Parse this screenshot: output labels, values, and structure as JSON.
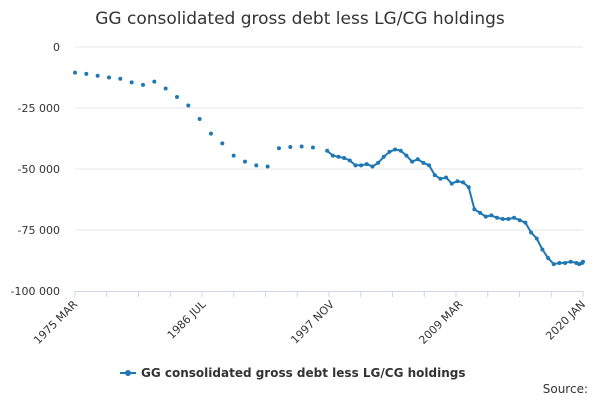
{
  "chart_data": {
    "type": "line",
    "title": "GG consolidated gross debt less LG/CG holdings",
    "xlabel": "",
    "ylabel": "",
    "ylim": [
      -100000,
      0
    ],
    "y_ticks": [
      0,
      -25000,
      -50000,
      -75000,
      -100000
    ],
    "y_tick_labels": [
      "0",
      "-25 000",
      "-50 000",
      "-75 000",
      "-100 000"
    ],
    "x_range": [
      "1975-03",
      "2020-01"
    ],
    "x_ticks": [
      "1975-03",
      "1986-07",
      "1997-11",
      "2009-03",
      "2020-01"
    ],
    "x_tick_labels": [
      "1975 MAR",
      "1986 JUL",
      "1997 NOV",
      "2009 MAR",
      "2020 JAN"
    ],
    "grid": true,
    "legend_position": "bottom",
    "colors": {
      "series": "#1f78b4",
      "grid": "#e6e6e6",
      "axis": "#ccd6eb",
      "text": "#333333"
    },
    "series": [
      {
        "name": "GG consolidated gross debt less LG/CG holdings",
        "annual": {
          "x": [
            "1975-03",
            "1976-03",
            "1977-03",
            "1978-03",
            "1979-03",
            "1980-03",
            "1981-03",
            "1982-03",
            "1983-03",
            "1984-03",
            "1985-03",
            "1986-03",
            "1987-03",
            "1988-03",
            "1989-03",
            "1990-03",
            "1991-03",
            "1992-03",
            "1993-03",
            "1994-03",
            "1995-03",
            "1996-03"
          ],
          "y": [
            -10500,
            -11000,
            -11800,
            -12500,
            -13000,
            -14500,
            -15500,
            -14200,
            -17000,
            -20500,
            -24000,
            -29500,
            -35500,
            -39500,
            -44500,
            -47000,
            -48500,
            -49000,
            -41500,
            -41000,
            -40800,
            -41200
          ]
        },
        "quarterly": {
          "x": [
            "1997-06",
            "1997-12",
            "1998-06",
            "1998-12",
            "1999-06",
            "1999-12",
            "2000-06",
            "2000-12",
            "2001-06",
            "2001-12",
            "2002-06",
            "2002-12",
            "2003-06",
            "2003-12",
            "2004-06",
            "2004-12",
            "2005-06",
            "2005-12",
            "2006-06",
            "2006-12",
            "2007-06",
            "2007-12",
            "2008-06",
            "2008-12",
            "2009-06",
            "2009-12",
            "2010-06",
            "2010-12",
            "2011-06",
            "2011-12",
            "2012-06",
            "2012-12",
            "2013-06",
            "2013-12",
            "2014-06",
            "2014-12",
            "2015-06",
            "2015-12",
            "2016-06",
            "2016-12",
            "2017-06",
            "2017-12",
            "2018-06",
            "2018-12",
            "2019-06",
            "2019-09",
            "2019-12",
            "2020-01"
          ],
          "y": [
            -42500,
            -44500,
            -45000,
            -45500,
            -46500,
            -48500,
            -48500,
            -48000,
            -49000,
            -47500,
            -45000,
            -43000,
            -42000,
            -42500,
            -44500,
            -47000,
            -46000,
            -47500,
            -48500,
            -52500,
            -54000,
            -53500,
            -56000,
            -55000,
            -55500,
            -57500,
            -66500,
            -68000,
            -69500,
            -69000,
            -70000,
            -70500,
            -70500,
            -70000,
            -71000,
            -72000,
            -76000,
            -78500,
            -83000,
            -86500,
            -89000,
            -88500,
            -88500,
            -88000,
            -88500,
            -89000,
            -88500,
            -88000
          ]
        }
      }
    ]
  },
  "legend": {
    "label": "GG consolidated gross debt less LG/CG holdings"
  },
  "source": {
    "label": "Source:"
  }
}
